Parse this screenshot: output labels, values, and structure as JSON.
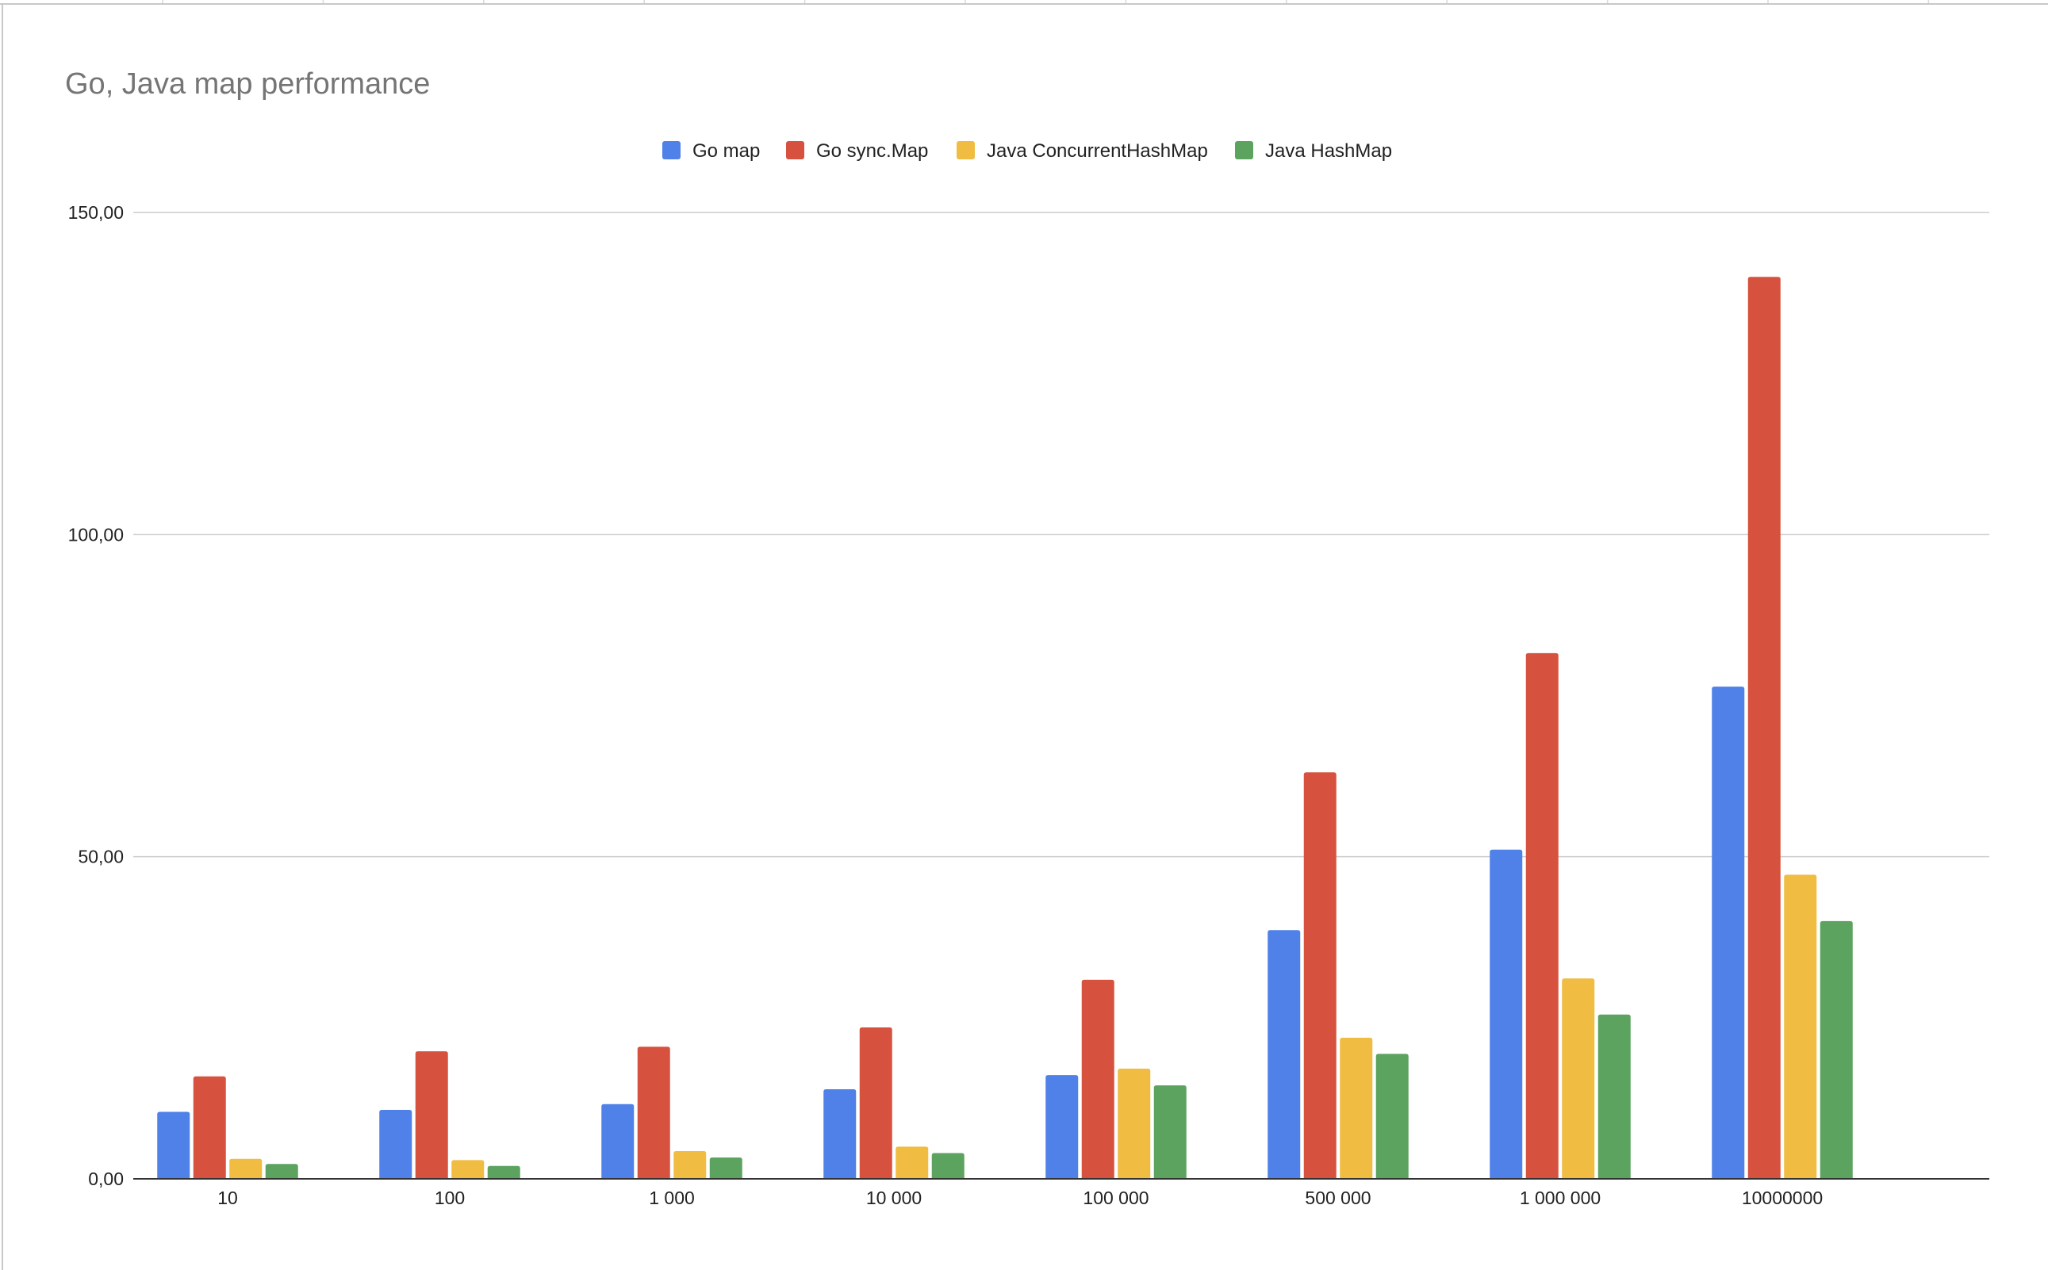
{
  "chart_data": {
    "type": "bar",
    "title": "Go, Java map performance",
    "xlabel": "",
    "ylabel": "",
    "categories": [
      "10",
      "100",
      "1 000",
      "10 000",
      "100 000",
      "500 000",
      "1 000 000",
      "10000000"
    ],
    "ylim": [
      0,
      150
    ],
    "yticks": [
      {
        "value": 0,
        "label": "0,00"
      },
      {
        "value": 50,
        "label": "50,00"
      },
      {
        "value": 100,
        "label": "100,00"
      },
      {
        "value": 150,
        "label": "150,00"
      }
    ],
    "grid": true,
    "legend_position": "top-center",
    "series": [
      {
        "name": "Go map",
        "color": "#4f81e8",
        "values": [
          10.4,
          10.7,
          11.6,
          13.9,
          16.1,
          38.6,
          51.1,
          76.4
        ]
      },
      {
        "name": "Go sync.Map",
        "color": "#d6523e",
        "values": [
          15.9,
          19.8,
          20.5,
          23.5,
          30.9,
          63.1,
          81.6,
          140.0
        ]
      },
      {
        "name": "Java ConcurrentHashMap",
        "color": "#f0bc42",
        "values": [
          3.1,
          2.9,
          4.3,
          5.0,
          17.1,
          21.9,
          31.1,
          47.2
        ]
      },
      {
        "name": "Java HashMap",
        "color": "#5ba35e",
        "values": [
          2.3,
          2.0,
          3.3,
          4.0,
          14.5,
          19.4,
          25.5,
          40.0
        ]
      }
    ]
  }
}
